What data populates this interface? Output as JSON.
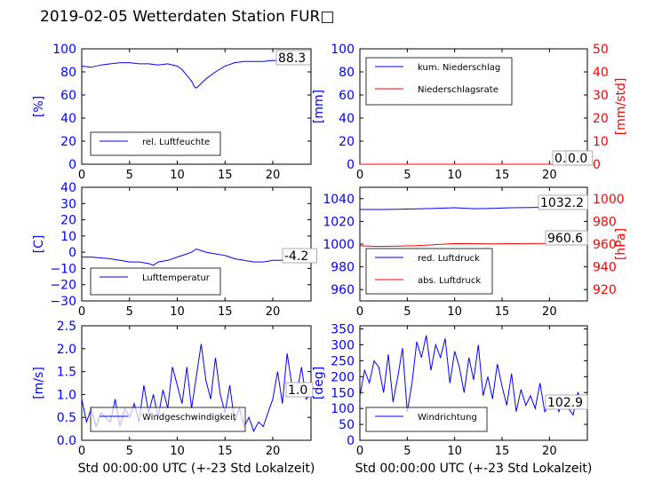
{
  "title": "2019-02-05 Wetterdaten Station FUR□",
  "colors": {
    "primary": "#0000ff",
    "secondary": "#ff0000",
    "axis": "#000000"
  },
  "chart_data": [
    {
      "id": "humidity",
      "type": "line",
      "xlim": [
        0,
        24
      ],
      "xticks": [
        0,
        5,
        10,
        15,
        20
      ],
      "ylim": [
        0,
        100
      ],
      "yticks": [
        0,
        20,
        40,
        60,
        80,
        100
      ],
      "ylabel": "[%]",
      "legend": {
        "placement": "lower-left",
        "entries": [
          "rel. Luftfeuchte"
        ]
      },
      "value_box": "88.3",
      "series": [
        {
          "name": "rel. Luftfeuchte",
          "color": "#0000ff",
          "x": [
            0,
            1,
            2,
            3,
            4,
            5,
            6,
            7,
            8,
            9,
            10,
            10.5,
            11,
            11.5,
            11.8,
            12,
            12.5,
            13,
            14,
            15,
            16,
            17,
            18,
            19,
            20,
            21,
            22,
            23,
            24
          ],
          "y": [
            85,
            84,
            86,
            87,
            88,
            88,
            87,
            87,
            86,
            87,
            85,
            82,
            77,
            72,
            67,
            66,
            70,
            74,
            80,
            85,
            88,
            89,
            89,
            89,
            90,
            89,
            88,
            88,
            88
          ]
        }
      ]
    },
    {
      "id": "precip",
      "type": "line",
      "xlim": [
        0,
        24
      ],
      "xticks": [
        0,
        5,
        10,
        15,
        20
      ],
      "ylim": [
        0,
        100
      ],
      "yticks": [
        0,
        20,
        40,
        60,
        80,
        100
      ],
      "ylabel": "[mm]",
      "y2lim": [
        0,
        50
      ],
      "y2ticks": [
        0,
        10,
        20,
        30,
        40,
        50
      ],
      "y2label": "[mm/std]",
      "legend": {
        "placement": "upper-left",
        "entries": [
          "kum. Niederschlag",
          "Niederschlagsrate"
        ]
      },
      "value_boxes": [
        "0.0",
        "0.0"
      ],
      "series": [
        {
          "name": "kum. Niederschlag",
          "axis": "left",
          "color": "#0000ff",
          "x": [
            0,
            24
          ],
          "y": [
            0,
            0
          ]
        },
        {
          "name": "Niederschlagsrate",
          "axis": "right",
          "color": "#ff0000",
          "x": [
            0,
            24
          ],
          "y": [
            0,
            0
          ]
        }
      ]
    },
    {
      "id": "temperature",
      "type": "line",
      "xlim": [
        0,
        24
      ],
      "xticks": [
        0,
        5,
        10,
        15,
        20
      ],
      "ylim": [
        -30,
        40
      ],
      "yticks": [
        -30,
        -20,
        -10,
        0,
        10,
        20,
        30,
        40
      ],
      "ylabel": "[C]",
      "legend": {
        "placement": "lower-left",
        "entries": [
          "Lufttemperatur"
        ]
      },
      "value_box": "-4.2",
      "series": [
        {
          "name": "Lufttemperatur",
          "color": "#0000ff",
          "x": [
            0,
            1,
            2,
            3,
            4,
            5,
            6,
            7,
            7.5,
            8,
            9,
            10,
            11,
            11.5,
            12,
            13,
            14,
            15,
            16,
            17,
            18,
            19,
            20,
            21,
            22,
            23,
            24
          ],
          "y": [
            -3,
            -3,
            -3.5,
            -4,
            -5,
            -6,
            -6,
            -7,
            -8,
            -6,
            -5,
            -3,
            -1,
            0,
            2,
            0,
            -1,
            -2,
            -4,
            -5,
            -6,
            -6,
            -5,
            -5,
            -4.5,
            -4.3,
            -4.2
          ]
        }
      ]
    },
    {
      "id": "pressure",
      "type": "line",
      "xlim": [
        0,
        24
      ],
      "xticks": [
        0,
        5,
        10,
        15,
        20
      ],
      "ylim": [
        950,
        1050
      ],
      "yticks": [
        960,
        980,
        1000,
        1020,
        1040
      ],
      "y2lim": [
        910,
        1010
      ],
      "y2ticks": [
        920,
        940,
        960,
        980,
        1000
      ],
      "y2label": "[hPa]",
      "legend": {
        "placement": "lower-left",
        "entries": [
          "red. Luftdruck",
          "abs. Luftdruck"
        ]
      },
      "value_boxes": [
        "1032.2",
        "960.6"
      ],
      "series": [
        {
          "name": "red. Luftdruck",
          "axis": "left",
          "color": "#0000ff",
          "x": [
            0,
            2,
            4,
            6,
            8,
            10,
            12,
            14,
            16,
            18,
            20,
            22,
            24
          ],
          "y": [
            1030.5,
            1030.5,
            1030.6,
            1031,
            1031.5,
            1032,
            1031.2,
            1031.5,
            1032,
            1032.3,
            1032.5,
            1032.3,
            1032.2
          ]
        },
        {
          "name": "abs. Luftdruck",
          "axis": "right",
          "color": "#ff0000",
          "x": [
            0,
            2,
            4,
            6,
            8,
            10,
            12,
            14,
            16,
            18,
            20,
            22,
            24
          ],
          "y": [
            958.5,
            958,
            958.2,
            958.6,
            959.5,
            960.5,
            960.4,
            960.2,
            960.4,
            960.5,
            960.6,
            960.6,
            960.6
          ]
        }
      ]
    },
    {
      "id": "windspeed",
      "type": "line",
      "xlim": [
        0,
        24
      ],
      "xticks": [
        0,
        5,
        10,
        15,
        20
      ],
      "xlabel": "Std 00:00:00 UTC (+-23 Std Lokalzeit)",
      "ylim": [
        0,
        2.5
      ],
      "yticks": [
        0.0,
        0.5,
        1.0,
        1.5,
        2.0,
        2.5
      ],
      "ylabel": "[m/s]",
      "legend": {
        "placement": "lower-left",
        "entries": [
          "Windgeschwindigkeit"
        ]
      },
      "value_box": "1.0",
      "series": [
        {
          "name": "Windgeschwindigkeit",
          "color": "#0000ff",
          "x": [
            0,
            0.5,
            1,
            1.5,
            2,
            2.5,
            3,
            3.5,
            4,
            4.5,
            5,
            5.5,
            6,
            6.5,
            7,
            7.5,
            8,
            8.5,
            9,
            9.5,
            10,
            10.5,
            11,
            11.5,
            12,
            12.5,
            13,
            13.5,
            14,
            14.5,
            15,
            15.5,
            16,
            16.5,
            17,
            17.5,
            18,
            18.5,
            19,
            19.5,
            20,
            20.5,
            21,
            21.5,
            22,
            22.5,
            23,
            23.5,
            24
          ],
          "y": [
            0.9,
            0.4,
            0.7,
            0.3,
            0.6,
            0.5,
            0.4,
            0.9,
            0.3,
            0.7,
            0.5,
            0.8,
            0.4,
            1.2,
            0.6,
            1.0,
            0.5,
            1.1,
            0.7,
            1.6,
            1.2,
            0.8,
            1.6,
            0.7,
            1.4,
            2.1,
            1.3,
            0.9,
            1.8,
            1.0,
            0.6,
            1.2,
            0.4,
            0.7,
            0.3,
            0.5,
            0.2,
            0.4,
            0.3,
            0.6,
            0.9,
            1.5,
            0.8,
            1.9,
            1.2,
            1.0,
            1.6,
            0.9,
            1.0
          ]
        }
      ]
    },
    {
      "id": "winddir",
      "type": "line",
      "xlim": [
        0,
        24
      ],
      "xticks": [
        0,
        5,
        10,
        15,
        20
      ],
      "xlabel": "Std 00:00:00 UTC (+-23 Std Lokalzeit)",
      "ylim": [
        0,
        360
      ],
      "yticks": [
        0,
        50,
        100,
        150,
        200,
        250,
        300,
        350
      ],
      "ylabel": "[deg]",
      "legend": {
        "placement": "lower-left",
        "entries": [
          "Windrichtung"
        ]
      },
      "value_box": "102.9",
      "series": [
        {
          "name": "Windrichtung",
          "color": "#0000ff",
          "x": [
            0,
            0.5,
            1,
            1.5,
            2,
            2.5,
            3,
            3.5,
            4,
            4.5,
            5,
            5.5,
            6,
            6.5,
            7,
            7.5,
            8,
            8.5,
            9,
            9.5,
            10,
            10.5,
            11,
            11.5,
            12,
            12.5,
            13,
            13.5,
            14,
            14.5,
            15,
            15.5,
            16,
            16.5,
            17,
            17.5,
            18,
            18.5,
            19,
            19.5,
            20,
            20.5,
            21,
            21.5,
            22,
            22.5,
            23,
            23.5,
            24
          ],
          "y": [
            140,
            220,
            180,
            250,
            230,
            150,
            270,
            120,
            200,
            290,
            90,
            180,
            310,
            260,
            330,
            220,
            300,
            260,
            320,
            180,
            280,
            230,
            150,
            260,
            190,
            300,
            140,
            200,
            130,
            240,
            170,
            110,
            210,
            90,
            160,
            110,
            140,
            100,
            180,
            90,
            110,
            130,
            90,
            140,
            100,
            80,
            150,
            120,
            103
          ]
        }
      ]
    }
  ]
}
